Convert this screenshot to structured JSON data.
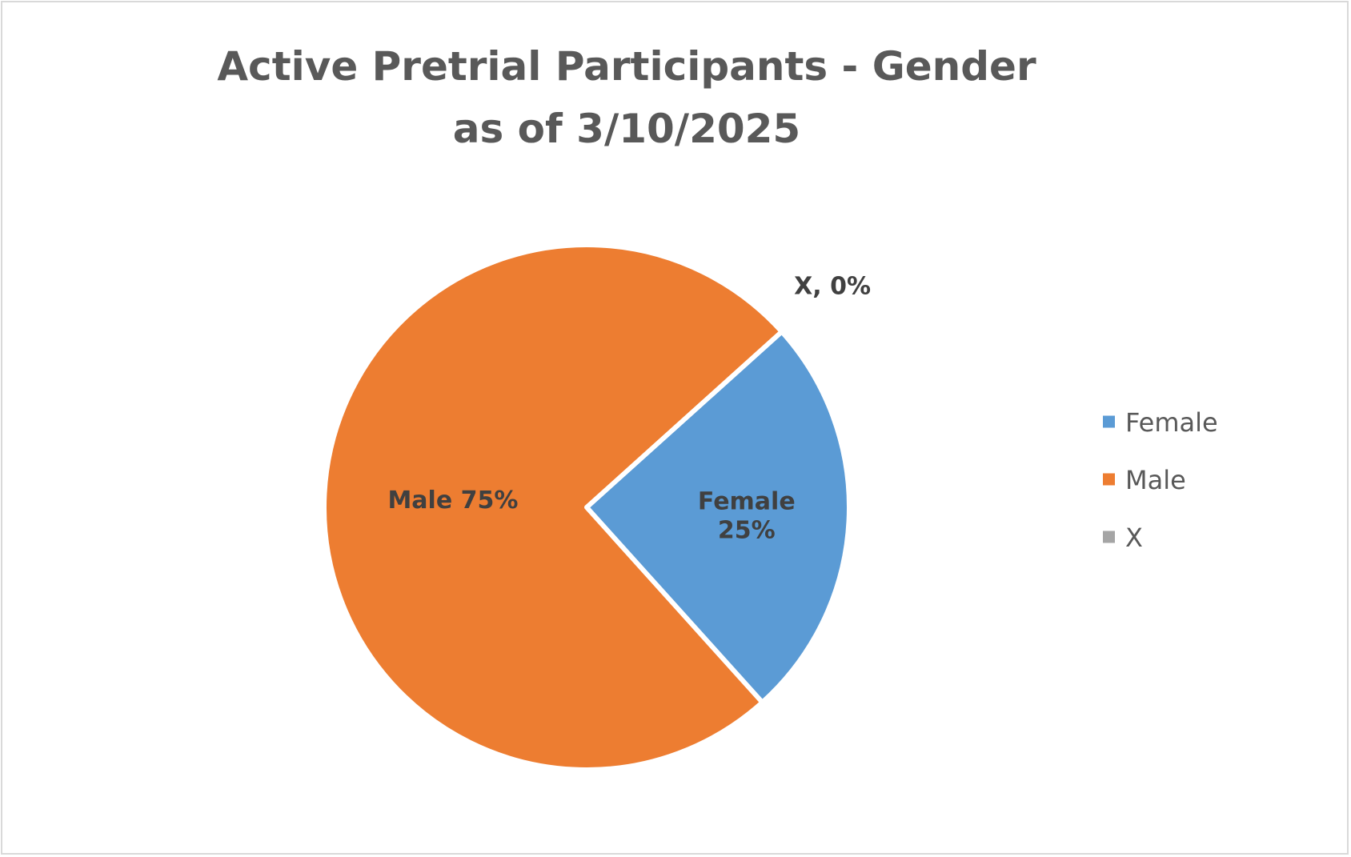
{
  "chart_data": {
    "type": "pie",
    "title": "Active Pretrial Participants - Gender",
    "subtitle": "as of 3/10/2025",
    "categories": [
      "Female",
      "Male",
      "X"
    ],
    "values": [
      25,
      75,
      0
    ],
    "colors": [
      "#5b9bd5",
      "#ed7d31",
      "#a5a5a5"
    ],
    "data_labels": [
      [
        "Female",
        "25%"
      ],
      [
        "Male 75%"
      ],
      [
        "X, 0%"
      ]
    ],
    "legend": {
      "placement": "right",
      "entries": [
        "Female",
        "Male",
        "X"
      ]
    }
  }
}
